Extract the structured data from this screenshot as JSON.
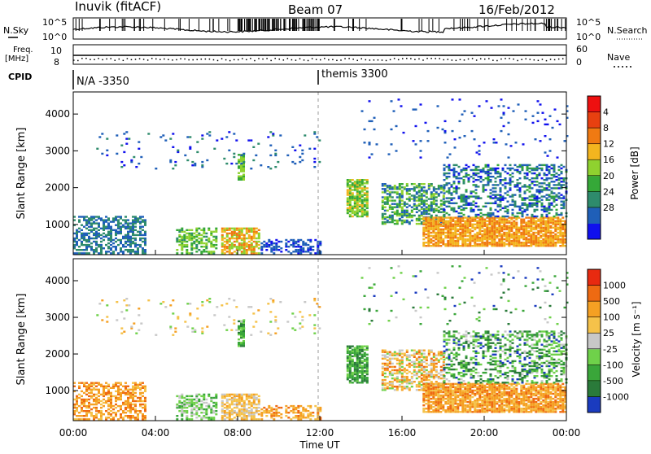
{
  "header": {
    "station": "Inuvik (fitACF)",
    "beam": "Beam 07",
    "date": "16/Feb/2012"
  },
  "top_panels": {
    "nsky_label": "N.Sky",
    "nsearch_label": "N.Search",
    "nsky_ticks": [
      "10^5",
      "10^0"
    ],
    "nsearch_ticks": [
      "10^5",
      "10^0"
    ],
    "freq_label_1": "Freq.",
    "freq_label_2": "[MHz]",
    "freq_ticks": [
      "10",
      "8"
    ],
    "nave_label": "Nave",
    "nave_ticks": [
      "60",
      "0"
    ],
    "cpid_label": "CPID",
    "cpid_segments": [
      {
        "text": "N/A -3350",
        "start_hour": 0
      },
      {
        "text": "themis 3300",
        "start_hour": 12
      }
    ]
  },
  "chart_data": [
    {
      "type": "heatmap",
      "title": "",
      "ylabel": "Slant Range [km]",
      "yticks": [
        "1000",
        "2000",
        "3000",
        "4000"
      ],
      "ylim": [
        180,
        4600
      ],
      "xlim": [
        0,
        24
      ],
      "colorbar": {
        "label": "Power [dB]",
        "ticks": [
          "4",
          "8",
          "12",
          "16",
          "20",
          "24",
          "28"
        ],
        "colors": [
          "#1010ee",
          "#1f5fb8",
          "#2e8b6c",
          "#35a838",
          "#8fd22f",
          "#f3b51f",
          "#f07a12",
          "#e84010",
          "#ee1010"
        ]
      }
    },
    {
      "type": "heatmap",
      "title": "",
      "ylabel": "Slant Range [km]",
      "yticks": [
        "1000",
        "2000",
        "3000",
        "4000"
      ],
      "ylim": [
        180,
        4600
      ],
      "xlim": [
        0,
        24
      ],
      "xlabel": "Time UT",
      "xticks": [
        "00:00",
        "04:00",
        "08:00",
        "12:00",
        "16:00",
        "20:00",
        "00:00"
      ],
      "colorbar": {
        "label": "Velocity [m s⁻¹]",
        "ticks": [
          "1000",
          "500",
          "100",
          "25",
          "-25",
          "-100",
          "-500",
          "-1000"
        ],
        "colors": [
          "#1a3bbf",
          "#2a7a3a",
          "#3aa63a",
          "#6fd14a",
          "#c8c8c8",
          "#f5c24a",
          "#f5a023",
          "#ee6a12",
          "#e82a10"
        ]
      }
    }
  ]
}
